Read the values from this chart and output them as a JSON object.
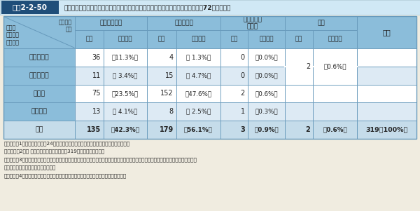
{
  "title_box": "図表2-2-50",
  "title_text": "漏えいした情報に対する暗号化等の情報保護措置を特段講じていなかった事案が約72％を占める",
  "col_group_headers": [
    "電子媒体のみ",
    "紙媒体のみ",
    "電子媒体と\n紙媒体",
    "不明"
  ],
  "col_sub_headers": [
    "件数",
    "（割合）",
    "件数",
    "（割合）",
    "件数",
    "（割合）",
    "件数",
    "（割合）"
  ],
  "merged_col_header": "合計",
  "top_left_top": "漏えいの\n形態",
  "top_left_bot": "暗号化\n等の情報\n保護措置",
  "rows": [
    {
      "label": "全部措置有",
      "den_c": "36",
      "den_p": "（11.3%）",
      "kami_c": "4",
      "kami_p": "（ 1.3%）",
      "both_c": "0",
      "both_p": "（0.0%）",
      "unkn_c": "",
      "unkn_p": "",
      "total": ""
    },
    {
      "label": "一部措置有",
      "den_c": "11",
      "den_p": "（ 3.4%）",
      "kami_c": "15",
      "kami_p": "（ 4.7%）",
      "both_c": "0",
      "both_p": "（0.0%）",
      "unkn_c": "2",
      "unkn_p": "（0.6%）",
      "total": ""
    },
    {
      "label": "措置無",
      "den_c": "75",
      "den_p": "（23.5%）",
      "kami_c": "152",
      "kami_p": "（47.6%）",
      "both_c": "2",
      "both_p": "（0.6%）",
      "unkn_c": "",
      "unkn_p": "",
      "total": ""
    },
    {
      "label": "措置不明",
      "den_c": "13",
      "den_p": "（ 4.1%）",
      "kami_c": "8",
      "kami_p": "（ 2.5%）",
      "both_c": "1",
      "both_p": "（0.3%）",
      "unkn_c": "",
      "unkn_p": "",
      "total": ""
    },
    {
      "label": "合計",
      "den_c": "135",
      "den_p": "（42.3%）",
      "kami_c": "179",
      "kami_p": "（56.1%）",
      "both_c": "3",
      "both_p": "（0.9%）",
      "unkn_c": "2",
      "unkn_p": "（0.6%）",
      "total": "319（100%）"
    }
  ],
  "unkn_merged_rows": [
    0,
    1
  ],
  "notes": [
    "（備考）　1．消費者庁「平成24年度個人情報の保護に関する法律　施行状況の概要」。",
    "　　　　　2．（ ）内は、漏えい事案全体（319件）に対する割合。",
    "　　　　　3．暗号化等の情報保護措置とは、情報の暗号化や紛失したパソコンへのパスワードによるアクセス制限等、情報保護のために講",
    "　　　　　　　じられた措置をいう。",
    "　　　　　4．「紙媒体のみ」には、口頭による漏えいを含む（「措置不明」に分類）。"
  ],
  "bg_color": "#eef4f7",
  "outer_bg": "#f0ece0",
  "header_bg": "#8bbdda",
  "row_bg_even": "#ffffff",
  "row_bg_odd": "#ddeaf4",
  "total_row_bg": "#c5dcea",
  "border_color": "#6699bb",
  "title_box_bg": "#1f4e79",
  "title_box_text": "#ffffff",
  "title_bg": "#d0e8f5",
  "text_dark": "#222222",
  "text_header": "#333333"
}
